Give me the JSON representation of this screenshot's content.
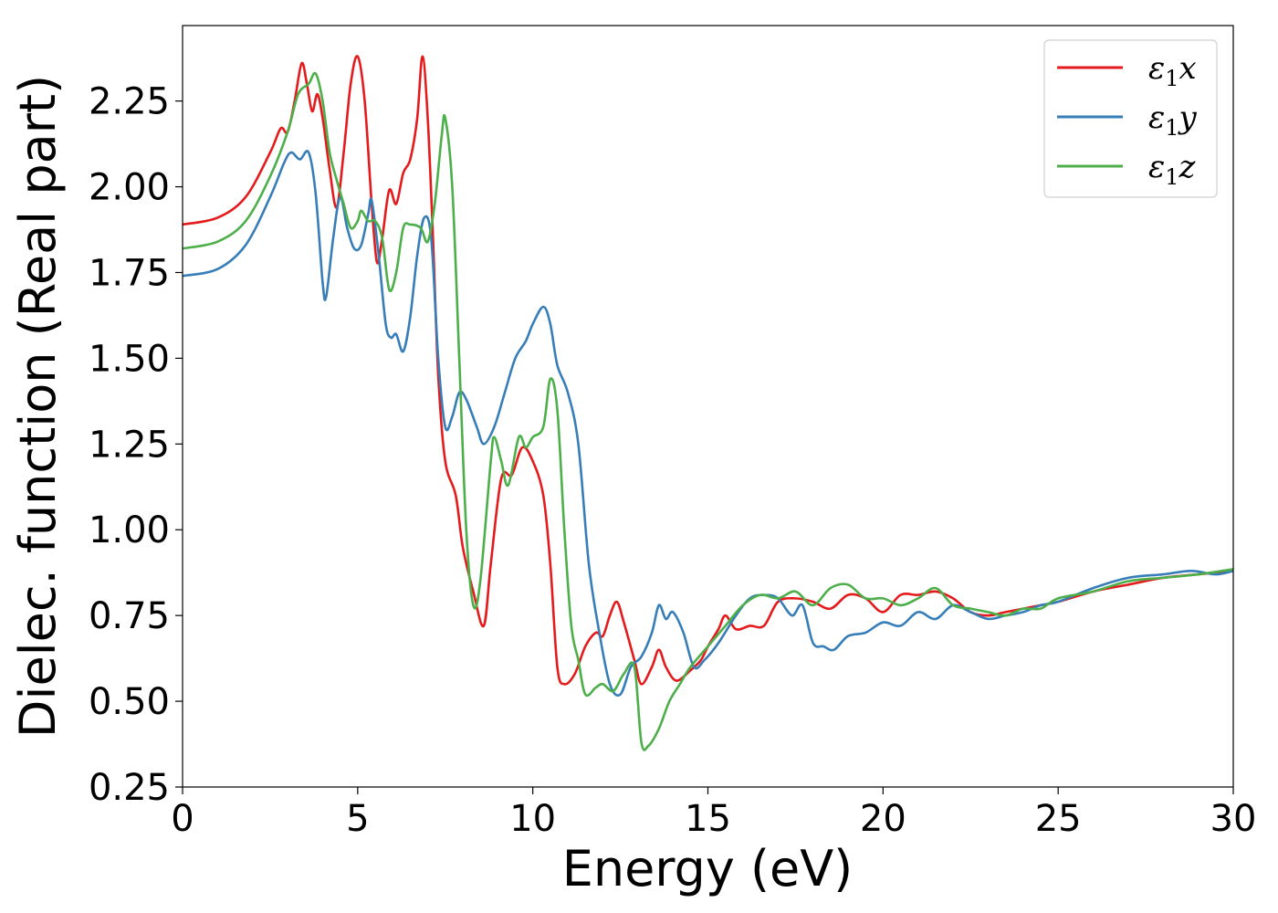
{
  "chart_data": {
    "type": "line",
    "xlabel": "Energy (eV)",
    "ylabel": "Dielec. function (Real part)",
    "xlim": [
      0,
      30
    ],
    "ylim": [
      0.25,
      2.47
    ],
    "xticks": [
      "0",
      "5",
      "10",
      "15",
      "20",
      "25",
      "30"
    ],
    "yticks": [
      "0.25",
      "0.50",
      "0.75",
      "1.00",
      "1.25",
      "1.50",
      "1.75",
      "2.00",
      "2.25"
    ],
    "grid": false,
    "legend_position": "top-right",
    "series": [
      {
        "name": "ε1x",
        "legend_base": "ε",
        "legend_sub": "1",
        "legend_tail": "x",
        "color": "#e41a1c",
        "points": [
          [
            0,
            1.89
          ],
          [
            1,
            1.91
          ],
          [
            1.8,
            1.97
          ],
          [
            2.5,
            2.1
          ],
          [
            2.8,
            2.17
          ],
          [
            3.0,
            2.16
          ],
          [
            3.2,
            2.25
          ],
          [
            3.4,
            2.36
          ],
          [
            3.55,
            2.3
          ],
          [
            3.7,
            2.22
          ],
          [
            3.85,
            2.27
          ],
          [
            4.0,
            2.2
          ],
          [
            4.2,
            2.05
          ],
          [
            4.4,
            1.94
          ],
          [
            4.6,
            2.1
          ],
          [
            4.8,
            2.3
          ],
          [
            5.0,
            2.38
          ],
          [
            5.2,
            2.25
          ],
          [
            5.4,
            1.95
          ],
          [
            5.55,
            1.78
          ],
          [
            5.7,
            1.85
          ],
          [
            5.9,
            1.99
          ],
          [
            6.1,
            1.95
          ],
          [
            6.3,
            2.04
          ],
          [
            6.5,
            2.08
          ],
          [
            6.7,
            2.2
          ],
          [
            6.85,
            2.38
          ],
          [
            7.0,
            2.2
          ],
          [
            7.15,
            1.85
          ],
          [
            7.3,
            1.45
          ],
          [
            7.5,
            1.2
          ],
          [
            7.8,
            1.1
          ],
          [
            8.0,
            0.95
          ],
          [
            8.3,
            0.82
          ],
          [
            8.6,
            0.72
          ],
          [
            8.8,
            0.9
          ],
          [
            9.1,
            1.15
          ],
          [
            9.4,
            1.16
          ],
          [
            9.7,
            1.24
          ],
          [
            10.0,
            1.2
          ],
          [
            10.3,
            1.1
          ],
          [
            10.5,
            0.9
          ],
          [
            10.7,
            0.6
          ],
          [
            10.9,
            0.55
          ],
          [
            11.2,
            0.58
          ],
          [
            11.5,
            0.66
          ],
          [
            11.8,
            0.7
          ],
          [
            12.0,
            0.69
          ],
          [
            12.2,
            0.75
          ],
          [
            12.4,
            0.79
          ],
          [
            12.6,
            0.73
          ],
          [
            12.9,
            0.62
          ],
          [
            13.1,
            0.55
          ],
          [
            13.4,
            0.6
          ],
          [
            13.6,
            0.65
          ],
          [
            13.8,
            0.6
          ],
          [
            14.1,
            0.56
          ],
          [
            14.5,
            0.59
          ],
          [
            14.8,
            0.62
          ],
          [
            15.0,
            0.66
          ],
          [
            15.3,
            0.71
          ],
          [
            15.5,
            0.75
          ],
          [
            15.8,
            0.71
          ],
          [
            16.2,
            0.72
          ],
          [
            16.6,
            0.72
          ],
          [
            17.0,
            0.79
          ],
          [
            17.5,
            0.8
          ],
          [
            18.0,
            0.79
          ],
          [
            18.5,
            0.77
          ],
          [
            19.0,
            0.81
          ],
          [
            19.5,
            0.8
          ],
          [
            20.0,
            0.76
          ],
          [
            20.5,
            0.81
          ],
          [
            21.0,
            0.81
          ],
          [
            21.5,
            0.82
          ],
          [
            22.0,
            0.8
          ],
          [
            22.5,
            0.76
          ],
          [
            23.0,
            0.75
          ],
          [
            23.5,
            0.76
          ],
          [
            24.0,
            0.77
          ],
          [
            24.5,
            0.78
          ],
          [
            25.0,
            0.79
          ],
          [
            26.0,
            0.82
          ],
          [
            27.0,
            0.84
          ],
          [
            28.0,
            0.86
          ],
          [
            29.0,
            0.87
          ],
          [
            30.0,
            0.88
          ]
        ]
      },
      {
        "name": "ε1y",
        "legend_base": "ε",
        "legend_sub": "1",
        "legend_tail": "y",
        "color": "#377eb8",
        "points": [
          [
            0,
            1.74
          ],
          [
            1,
            1.76
          ],
          [
            1.8,
            1.83
          ],
          [
            2.5,
            1.97
          ],
          [
            2.9,
            2.07
          ],
          [
            3.1,
            2.1
          ],
          [
            3.35,
            2.08
          ],
          [
            3.6,
            2.1
          ],
          [
            3.8,
            1.98
          ],
          [
            4.0,
            1.72
          ],
          [
            4.1,
            1.68
          ],
          [
            4.3,
            1.85
          ],
          [
            4.5,
            1.97
          ],
          [
            4.7,
            1.88
          ],
          [
            4.9,
            1.82
          ],
          [
            5.1,
            1.83
          ],
          [
            5.3,
            1.92
          ],
          [
            5.4,
            1.96
          ],
          [
            5.6,
            1.8
          ],
          [
            5.8,
            1.6
          ],
          [
            5.95,
            1.56
          ],
          [
            6.1,
            1.57
          ],
          [
            6.3,
            1.52
          ],
          [
            6.5,
            1.62
          ],
          [
            6.7,
            1.8
          ],
          [
            6.9,
            1.91
          ],
          [
            7.1,
            1.85
          ],
          [
            7.3,
            1.5
          ],
          [
            7.5,
            1.3
          ],
          [
            7.7,
            1.33
          ],
          [
            7.9,
            1.4
          ],
          [
            8.1,
            1.38
          ],
          [
            8.4,
            1.3
          ],
          [
            8.6,
            1.25
          ],
          [
            8.9,
            1.3
          ],
          [
            9.2,
            1.4
          ],
          [
            9.5,
            1.5
          ],
          [
            9.8,
            1.55
          ],
          [
            10.0,
            1.6
          ],
          [
            10.3,
            1.65
          ],
          [
            10.5,
            1.6
          ],
          [
            10.7,
            1.48
          ],
          [
            11.0,
            1.4
          ],
          [
            11.3,
            1.25
          ],
          [
            11.6,
            0.9
          ],
          [
            11.9,
            0.7
          ],
          [
            12.2,
            0.55
          ],
          [
            12.5,
            0.52
          ],
          [
            12.8,
            0.6
          ],
          [
            13.1,
            0.63
          ],
          [
            13.4,
            0.7
          ],
          [
            13.6,
            0.78
          ],
          [
            13.8,
            0.74
          ],
          [
            14.0,
            0.76
          ],
          [
            14.3,
            0.7
          ],
          [
            14.6,
            0.6
          ],
          [
            14.9,
            0.62
          ],
          [
            15.3,
            0.67
          ],
          [
            15.8,
            0.75
          ],
          [
            16.2,
            0.8
          ],
          [
            16.6,
            0.81
          ],
          [
            17.0,
            0.8
          ],
          [
            17.4,
            0.75
          ],
          [
            17.7,
            0.78
          ],
          [
            18.0,
            0.67
          ],
          [
            18.3,
            0.66
          ],
          [
            18.6,
            0.65
          ],
          [
            19.0,
            0.69
          ],
          [
            19.5,
            0.7
          ],
          [
            20.0,
            0.73
          ],
          [
            20.5,
            0.72
          ],
          [
            21.0,
            0.76
          ],
          [
            21.5,
            0.74
          ],
          [
            22.0,
            0.78
          ],
          [
            22.5,
            0.76
          ],
          [
            23.0,
            0.74
          ],
          [
            23.5,
            0.75
          ],
          [
            24.0,
            0.76
          ],
          [
            24.5,
            0.78
          ],
          [
            25.0,
            0.79
          ],
          [
            26.0,
            0.83
          ],
          [
            27.0,
            0.86
          ],
          [
            28.0,
            0.87
          ],
          [
            28.8,
            0.88
          ],
          [
            29.5,
            0.87
          ],
          [
            30.0,
            0.88
          ]
        ]
      },
      {
        "name": "ε1z",
        "legend_base": "ε",
        "legend_sub": "1",
        "legend_tail": "z",
        "color": "#4daf4a",
        "points": [
          [
            0,
            1.82
          ],
          [
            1,
            1.84
          ],
          [
            1.8,
            1.9
          ],
          [
            2.5,
            2.03
          ],
          [
            3.0,
            2.16
          ],
          [
            3.3,
            2.27
          ],
          [
            3.6,
            2.3
          ],
          [
            3.8,
            2.33
          ],
          [
            4.0,
            2.25
          ],
          [
            4.2,
            2.1
          ],
          [
            4.4,
            2.02
          ],
          [
            4.6,
            1.95
          ],
          [
            4.8,
            1.88
          ],
          [
            5.0,
            1.9
          ],
          [
            5.1,
            1.93
          ],
          [
            5.3,
            1.9
          ],
          [
            5.5,
            1.9
          ],
          [
            5.7,
            1.85
          ],
          [
            5.9,
            1.7
          ],
          [
            6.1,
            1.75
          ],
          [
            6.3,
            1.88
          ],
          [
            6.5,
            1.89
          ],
          [
            6.8,
            1.88
          ],
          [
            7.0,
            1.84
          ],
          [
            7.2,
            1.95
          ],
          [
            7.4,
            2.15
          ],
          [
            7.5,
            2.2
          ],
          [
            7.7,
            2.0
          ],
          [
            7.9,
            1.5
          ],
          [
            8.1,
            1.0
          ],
          [
            8.3,
            0.78
          ],
          [
            8.5,
            0.85
          ],
          [
            8.8,
            1.2
          ],
          [
            8.9,
            1.27
          ],
          [
            9.1,
            1.2
          ],
          [
            9.3,
            1.13
          ],
          [
            9.6,
            1.27
          ],
          [
            9.8,
            1.24
          ],
          [
            10.0,
            1.27
          ],
          [
            10.3,
            1.3
          ],
          [
            10.5,
            1.44
          ],
          [
            10.7,
            1.35
          ],
          [
            10.9,
            1.0
          ],
          [
            11.1,
            0.72
          ],
          [
            11.3,
            0.62
          ],
          [
            11.5,
            0.52
          ],
          [
            11.8,
            0.54
          ],
          [
            12.0,
            0.55
          ],
          [
            12.3,
            0.53
          ],
          [
            12.6,
            0.58
          ],
          [
            12.9,
            0.6
          ],
          [
            13.1,
            0.38
          ],
          [
            13.3,
            0.37
          ],
          [
            13.6,
            0.42
          ],
          [
            13.9,
            0.5
          ],
          [
            14.2,
            0.55
          ],
          [
            14.5,
            0.6
          ],
          [
            15.0,
            0.66
          ],
          [
            15.5,
            0.72
          ],
          [
            16.0,
            0.78
          ],
          [
            16.5,
            0.81
          ],
          [
            17.0,
            0.8
          ],
          [
            17.5,
            0.82
          ],
          [
            18.0,
            0.78
          ],
          [
            18.5,
            0.83
          ],
          [
            19.0,
            0.84
          ],
          [
            19.5,
            0.8
          ],
          [
            20.0,
            0.8
          ],
          [
            20.5,
            0.78
          ],
          [
            21.0,
            0.8
          ],
          [
            21.5,
            0.83
          ],
          [
            22.0,
            0.78
          ],
          [
            22.5,
            0.77
          ],
          [
            23.0,
            0.76
          ],
          [
            23.5,
            0.75
          ],
          [
            24.0,
            0.77
          ],
          [
            24.5,
            0.77
          ],
          [
            25.0,
            0.8
          ],
          [
            26.0,
            0.82
          ],
          [
            27.0,
            0.85
          ],
          [
            28.0,
            0.86
          ],
          [
            29.0,
            0.87
          ],
          [
            30.0,
            0.885
          ]
        ]
      }
    ]
  }
}
